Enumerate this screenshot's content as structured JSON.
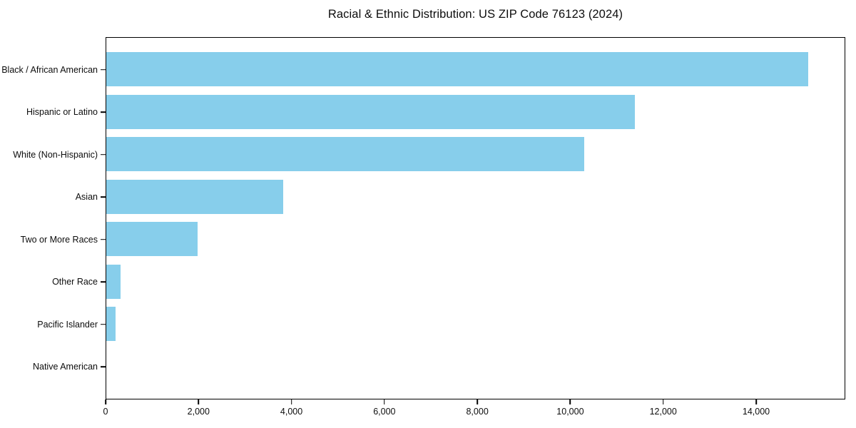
{
  "chart_data": {
    "type": "bar",
    "orientation": "horizontal",
    "title": "Racial & Ethnic Distribution: US ZIP Code 76123 (2024)",
    "categories": [
      "Black / African American",
      "Hispanic or Latino",
      "White (Non-Hispanic)",
      "Asian",
      "Two or More Races",
      "Other Race",
      "Pacific Islander",
      "Native American"
    ],
    "values": [
      15110,
      11380,
      10280,
      3810,
      1970,
      300,
      200,
      0
    ],
    "xlabel": "",
    "ylabel": "",
    "xlim": [
      0,
      15870
    ],
    "xticks": {
      "values": [
        0,
        2000,
        4000,
        6000,
        8000,
        10000,
        12000,
        14000
      ],
      "labels": [
        "0",
        "2,000",
        "4,000",
        "6,000",
        "8,000",
        "10,000",
        "12,000",
        "14,000"
      ]
    },
    "bar_color": "#87CEEB",
    "frame_color": "#000000",
    "background_color": "#ffffff",
    "grid": false,
    "legend_position": "none"
  }
}
